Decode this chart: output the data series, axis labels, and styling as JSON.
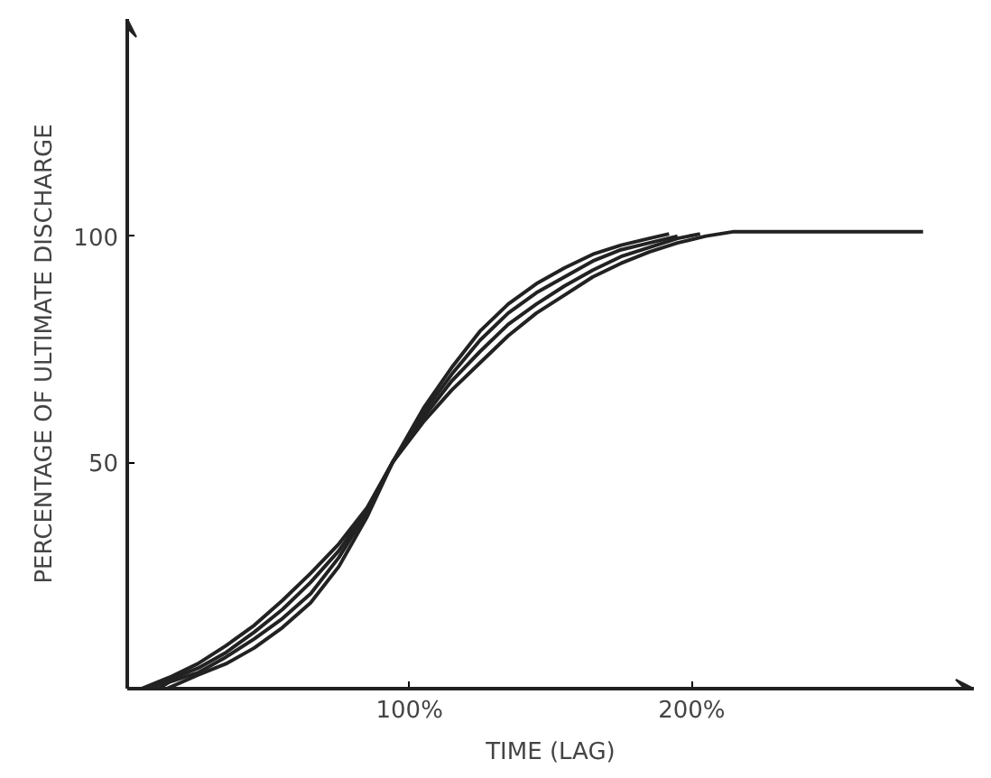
{
  "chart_data": {
    "type": "line",
    "xlabel": "TIME (LAG)",
    "ylabel": "PERCENTAGE OF ULTIMATE DISCHARGE",
    "series": [
      {
        "color": "#222222",
        "x": [
          5,
          15,
          25,
          35,
          45,
          55,
          65,
          75,
          85,
          94,
          105,
          115,
          125,
          135,
          145,
          155,
          165,
          175,
          185,
          195,
          205,
          215,
          230,
          250,
          282
        ],
        "values": [
          0,
          2.5,
          5.5,
          9.5,
          14,
          19.5,
          25.5,
          32,
          40,
          50,
          59,
          66,
          72,
          78,
          83,
          87,
          91,
          94,
          96.5,
          98.5,
          100,
          101,
          101,
          101,
          101
        ]
      },
      {
        "color": "#222222",
        "x": [
          8,
          15,
          25,
          35,
          45,
          55,
          65,
          75,
          85,
          94,
          105,
          115,
          125,
          135,
          145,
          155,
          165,
          175,
          185,
          195,
          203
        ],
        "values": [
          0,
          2,
          4.5,
          8,
          12.5,
          17.5,
          23.5,
          30.5,
          39.5,
          50,
          60,
          68,
          74.5,
          80.5,
          85,
          89,
          92.5,
          95.5,
          97.5,
          99.5,
          100.5
        ]
      },
      {
        "color": "#222222",
        "x": [
          11,
          15,
          25,
          35,
          45,
          55,
          65,
          75,
          85,
          94,
          105,
          115,
          125,
          135,
          145,
          155,
          165,
          175,
          185,
          195
        ],
        "values": [
          0,
          1.5,
          3.5,
          7,
          11,
          15.5,
          21,
          29,
          39,
          50,
          61,
          69.5,
          77,
          83,
          87.5,
          91,
          94.5,
          97,
          98.5,
          100
        ]
      },
      {
        "color": "#222222",
        "x": [
          14,
          25,
          35,
          45,
          55,
          65,
          75,
          85,
          94,
          105,
          115,
          125,
          135,
          145,
          155,
          165,
          175,
          185,
          192
        ],
        "values": [
          0,
          3,
          5.5,
          9,
          13.5,
          19,
          27,
          38,
          50,
          62,
          71,
          79,
          85,
          89.5,
          93,
          96,
          98,
          99.5,
          100.5
        ]
      }
    ],
    "xlim": [
      0,
      300
    ],
    "ylim": [
      0,
      148
    ],
    "xticks": [
      {
        "value": 100,
        "label": "100%"
      },
      {
        "value": 200,
        "label": "200%"
      }
    ],
    "yticks": [
      50,
      100
    ],
    "grid": false,
    "marker": "none",
    "line_style": "solid"
  }
}
